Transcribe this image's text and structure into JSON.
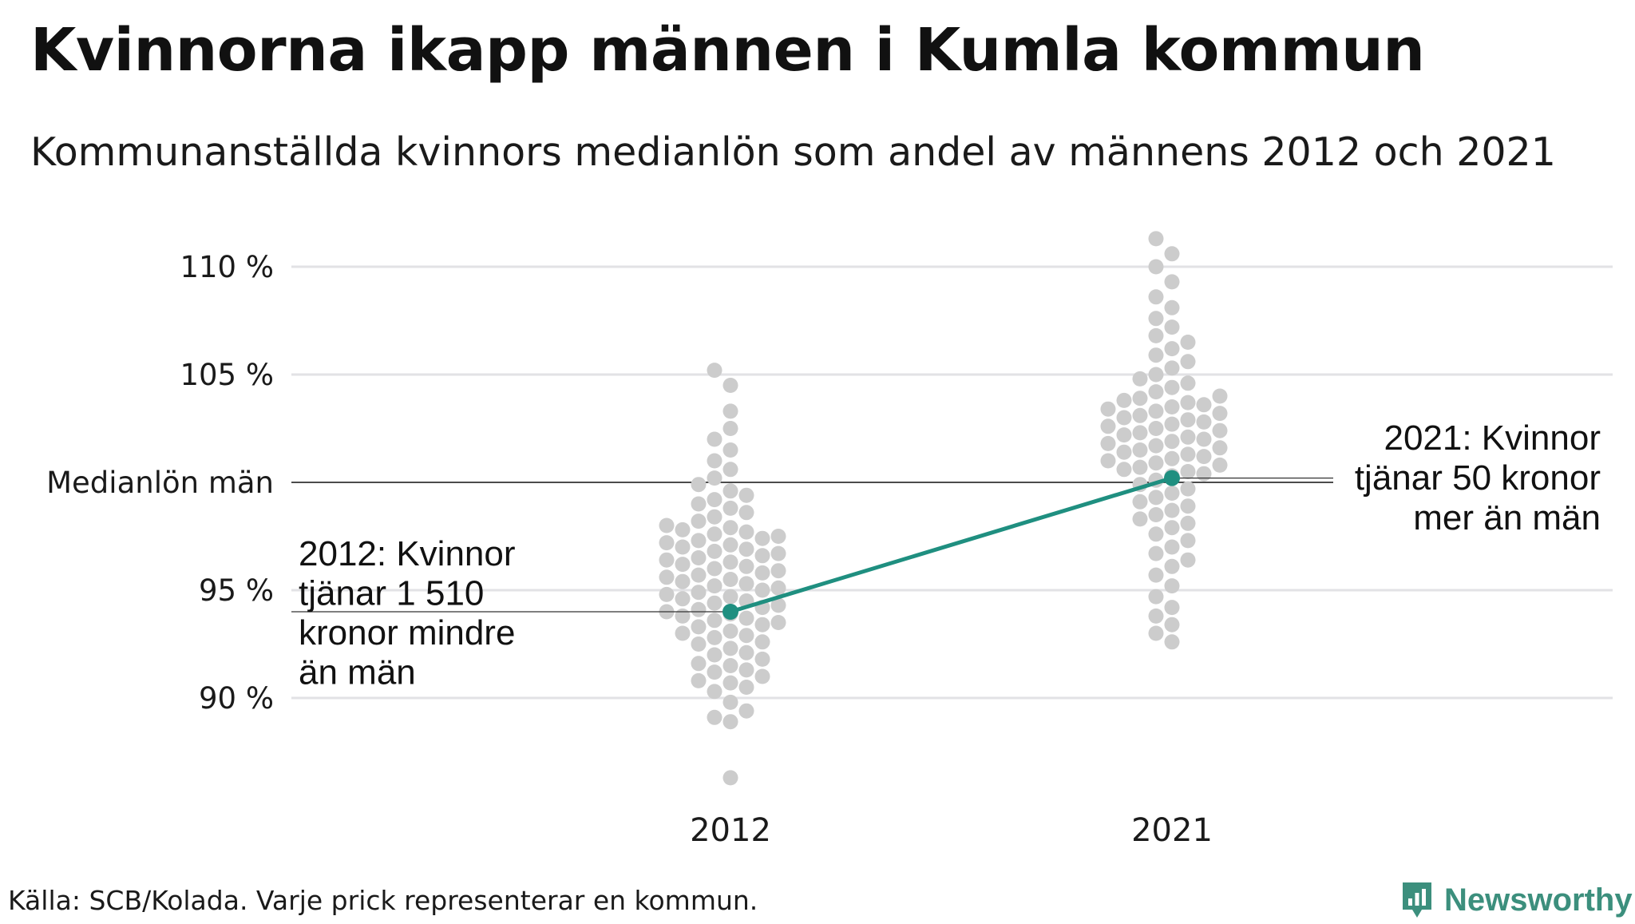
{
  "header": {
    "title": "Kvinnorna ikapp männen i Kumla kommun",
    "subtitle": "Kommunanställda kvinnors medianlön som andel av männens 2012 och 2021"
  },
  "footer": {
    "source": "Källa: SCB/Kolada. Varje prick representerar en kommun.",
    "brand": "Newsworthy",
    "brand_icon": "bar-chart-badge-icon"
  },
  "colors": {
    "dots": "#cccccc",
    "highlight": "#1f8f80",
    "grid": "#e2e2e5",
    "reference_line": "#111111",
    "brand": "#3c8f7d"
  },
  "chart_data": {
    "type": "scatter",
    "title": "Kvinnorna ikapp männen i Kumla kommun",
    "subtitle": "Kommunanställda kvinnors medianlön som andel av männens 2012 och 2021",
    "categories": [
      "2012",
      "2021"
    ],
    "y_unit": "%",
    "ylim": [
      85.5,
      111.5
    ],
    "y_ticks": [
      {
        "value": 90,
        "label": "90 %"
      },
      {
        "value": 95,
        "label": "95 %"
      },
      {
        "value": 100,
        "label": "Medianlön män"
      },
      {
        "value": 105,
        "label": "105 %"
      },
      {
        "value": 110,
        "label": "110 %"
      }
    ],
    "reference_line": {
      "value": 100,
      "label": "Medianlön män"
    },
    "grid": true,
    "series": [
      {
        "name": "Kumla kommun",
        "values": [
          94.0,
          100.2
        ]
      }
    ],
    "beeswarm": [
      {
        "category": "2012",
        "values": [
          86.3,
          88.9,
          89.1,
          89.4,
          89.8,
          90.3,
          90.5,
          90.7,
          90.8,
          91.0,
          91.2,
          91.3,
          91.5,
          91.6,
          91.8,
          92.0,
          92.1,
          92.3,
          92.5,
          92.6,
          92.8,
          92.9,
          93.0,
          93.1,
          93.3,
          93.4,
          93.5,
          93.6,
          93.7,
          93.8,
          93.9,
          94.0,
          94.1,
          94.2,
          94.3,
          94.4,
          94.5,
          94.6,
          94.7,
          94.8,
          94.9,
          95.0,
          95.1,
          95.2,
          95.3,
          95.4,
          95.5,
          95.6,
          95.7,
          95.8,
          95.9,
          96.0,
          96.1,
          96.2,
          96.3,
          96.4,
          96.5,
          96.6,
          96.7,
          96.8,
          96.9,
          97.0,
          97.1,
          97.2,
          97.3,
          97.4,
          97.5,
          97.6,
          97.7,
          97.8,
          97.9,
          98.0,
          98.2,
          98.4,
          98.6,
          98.8,
          99.0,
          99.2,
          99.4,
          99.6,
          99.9,
          100.2,
          100.6,
          101.0,
          101.5,
          102.0,
          102.5,
          103.3,
          104.5,
          105.2
        ]
      },
      {
        "category": "2021",
        "values": [
          92.6,
          93.0,
          93.4,
          93.8,
          94.2,
          94.7,
          95.2,
          95.7,
          96.1,
          96.4,
          96.7,
          97.0,
          97.3,
          97.6,
          97.9,
          98.1,
          98.3,
          98.5,
          98.7,
          98.9,
          99.1,
          99.3,
          99.5,
          99.7,
          99.9,
          100.1,
          100.3,
          100.4,
          100.5,
          100.6,
          100.7,
          100.8,
          100.9,
          101.0,
          101.1,
          101.2,
          101.3,
          101.4,
          101.5,
          101.6,
          101.7,
          101.8,
          101.9,
          102.0,
          102.1,
          102.2,
          102.3,
          102.4,
          102.5,
          102.6,
          102.7,
          102.8,
          102.9,
          103.0,
          103.1,
          103.2,
          103.3,
          103.4,
          103.5,
          103.6,
          103.7,
          103.8,
          103.9,
          104.0,
          104.2,
          104.4,
          104.6,
          104.8,
          105.0,
          105.3,
          105.6,
          105.9,
          106.2,
          106.5,
          106.8,
          107.2,
          107.6,
          108.1,
          108.6,
          109.3,
          110.0,
          110.6,
          111.3
        ]
      }
    ],
    "annotations": [
      {
        "category": "2012",
        "lines": [
          "2012: Kvinnor",
          "tjänar 1 510",
          "kronor mindre",
          "än män"
        ]
      },
      {
        "category": "2021",
        "lines": [
          "2021: Kvinnor",
          "tjänar 50 kronor",
          "mer än män"
        ]
      }
    ]
  }
}
